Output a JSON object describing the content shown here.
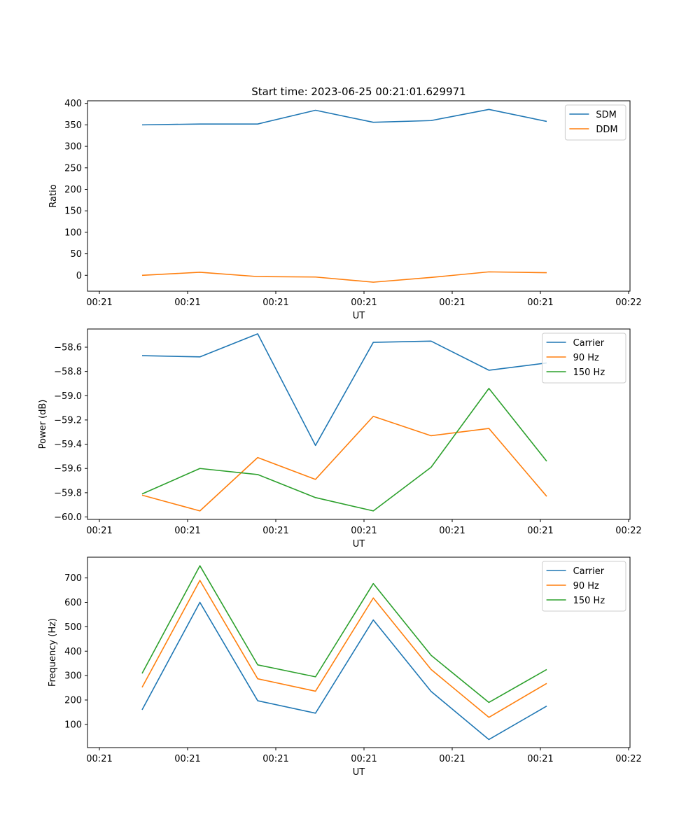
{
  "figure": {
    "title": "Start time: 2023-06-25 00:21:01.629971"
  },
  "colors": {
    "blue": "#1f77b4",
    "orange": "#ff7f0e",
    "green": "#2ca02c"
  },
  "chart_data": [
    {
      "type": "line",
      "title": "Start time: 2023-06-25 00:21:01.629971",
      "xlabel": "UT",
      "ylabel": "Ratio",
      "x_tick_labels": [
        "00:21",
        "00:21",
        "00:21",
        "00:21",
        "00:21",
        "00:21",
        "00:22"
      ],
      "x_points": 8,
      "yticks": [
        0,
        50,
        100,
        150,
        200,
        250,
        300,
        350,
        400
      ],
      "ylim": [
        -37,
        406
      ],
      "grid": false,
      "legend_position": "top-right",
      "series": [
        {
          "name": "SDM",
          "color": "#1f77b4",
          "values": [
            350,
            352,
            352,
            384,
            356,
            360,
            386,
            358
          ]
        },
        {
          "name": "DDM",
          "color": "#ff7f0e",
          "values": [
            0,
            7,
            -3,
            -4,
            -16,
            -5,
            8,
            6
          ]
        }
      ]
    },
    {
      "type": "line",
      "xlabel": "UT",
      "ylabel": "Power (dB)",
      "x_tick_labels": [
        "00:21",
        "00:21",
        "00:21",
        "00:21",
        "00:21",
        "00:21",
        "00:22"
      ],
      "x_points": 8,
      "yticks": [
        -60.0,
        -59.8,
        -59.6,
        -59.4,
        -59.2,
        -59.0,
        -58.8,
        -58.6
      ],
      "ytick_labels": [
        "−60.0",
        "−59.8",
        "−59.6",
        "−59.4",
        "−59.2",
        "−59.0",
        "−58.8",
        "−58.6"
      ],
      "ylim": [
        -60.02,
        -58.45
      ],
      "grid": false,
      "legend_position": "top-right",
      "series": [
        {
          "name": "Carrier",
          "color": "#1f77b4",
          "values": [
            -58.67,
            -58.68,
            -58.49,
            -59.41,
            -58.56,
            -58.55,
            -58.79,
            -58.73
          ]
        },
        {
          "name": "90 Hz",
          "color": "#ff7f0e",
          "values": [
            -59.82,
            -59.95,
            -59.51,
            -59.69,
            -59.17,
            -59.33,
            -59.27,
            -59.83
          ]
        },
        {
          "name": "150 Hz",
          "color": "#2ca02c",
          "values": [
            -59.81,
            -59.6,
            -59.65,
            -59.84,
            -59.95,
            -59.59,
            -58.94,
            -59.54
          ]
        }
      ]
    },
    {
      "type": "line",
      "xlabel": "UT",
      "ylabel": "Frequency (Hz)",
      "x_tick_labels": [
        "00:21",
        "00:21",
        "00:21",
        "00:21",
        "00:21",
        "00:21",
        "00:22"
      ],
      "x_points": 8,
      "yticks": [
        100,
        200,
        300,
        400,
        500,
        600,
        700
      ],
      "ylim": [
        5,
        785
      ],
      "grid": false,
      "legend_position": "top-right",
      "series": [
        {
          "name": "Carrier",
          "color": "#1f77b4",
          "values": [
            160,
            600,
            197,
            146,
            528,
            235,
            38,
            175
          ]
        },
        {
          "name": "90 Hz",
          "color": "#ff7f0e",
          "values": [
            252,
            690,
            287,
            236,
            618,
            325,
            129,
            268
          ]
        },
        {
          "name": "150 Hz",
          "color": "#2ca02c",
          "values": [
            309,
            750,
            344,
            295,
            677,
            383,
            190,
            325
          ]
        }
      ]
    }
  ]
}
